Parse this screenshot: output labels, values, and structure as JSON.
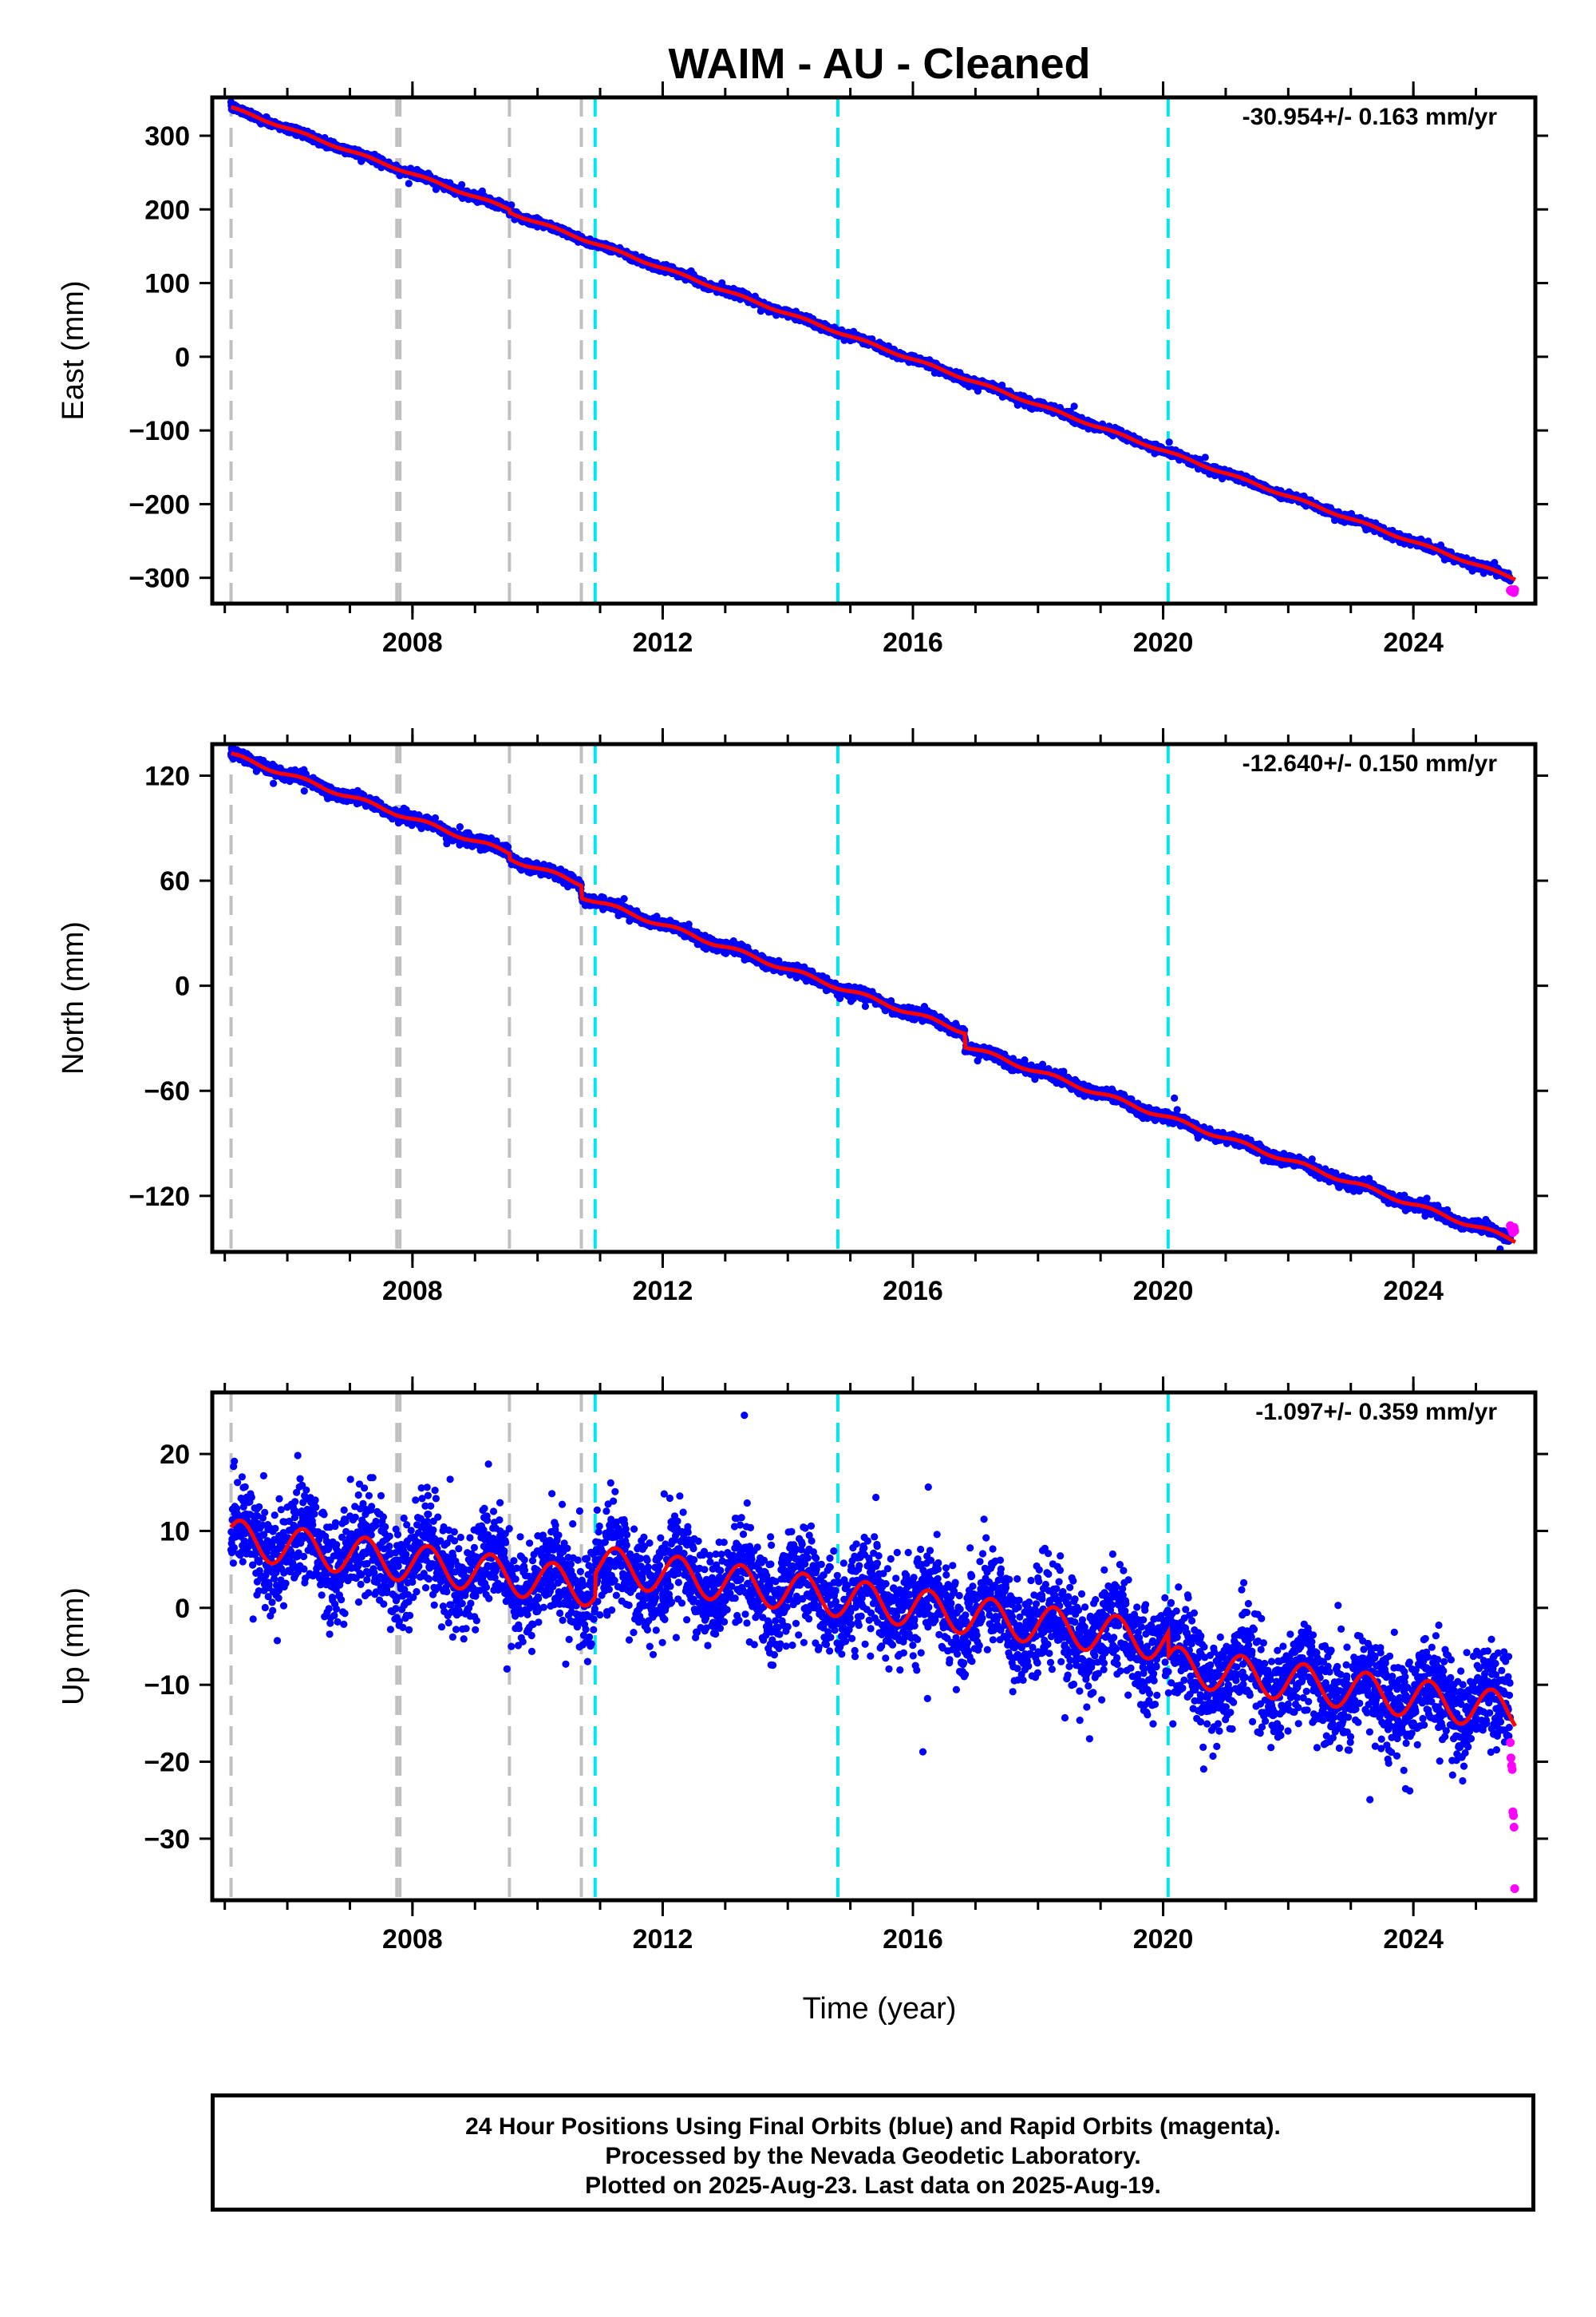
{
  "chart_data": {
    "type": "scatter",
    "title": "WAIM  - AU - Cleaned",
    "xlabel": "Time (year)",
    "xlim": [
      2004.8,
      2025.95
    ],
    "xticks": [
      2008,
      2012,
      2016,
      2020,
      2024
    ],
    "xticks_minor": [
      2005,
      2006,
      2007,
      2008,
      2009,
      2010,
      2011,
      2012,
      2013,
      2014,
      2015,
      2016,
      2017,
      2018,
      2019,
      2020,
      2021,
      2022,
      2023,
      2024,
      2025
    ],
    "start_year": 2005.1,
    "end_year": 2025.63,
    "rapid_start_year": 2025.55,
    "gray_dashed_lines": [
      2005.1,
      2007.75,
      2007.8,
      2009.55,
      2010.7
    ],
    "cyan_dashed_lines": [
      2010.92,
      2014.8,
      2020.08
    ],
    "colors": {
      "final": "#0000ff",
      "rapid": "#ff00ff",
      "model": "#ff0000",
      "gray_line": "#c0c0c0",
      "cyan_line": "#00e5ee"
    },
    "panels": [
      {
        "id": "east",
        "ylabel": "East (mm)",
        "ylim": [
          -335,
          352
        ],
        "yticks": [
          300,
          200,
          100,
          0,
          -100,
          -200,
          -300
        ],
        "rate_text": "-30.954+/- 0.163 mm/yr",
        "start_value": 338,
        "rate_mm_per_yr": -30.954,
        "scatter_sd": 2.5,
        "seasonal_amp": 1.5,
        "offsets": [
          [
            2007.78,
            0
          ],
          [
            2009.55,
            -4
          ],
          [
            2010.7,
            0
          ]
        ],
        "rapid_values": [
          -317,
          -318,
          -316,
          -319,
          -317,
          -318,
          -320,
          -316
        ]
      },
      {
        "id": "north",
        "ylabel": "North (mm)",
        "ylim": [
          -152,
          138
        ],
        "yticks": [
          120,
          60,
          0,
          -60,
          -120
        ],
        "rate_text": "-12.640+/- 0.150 mm/yr",
        "start_value": 132,
        "rate_mm_per_yr": -12.64,
        "scatter_sd": 1.5,
        "seasonal_amp": 1.2,
        "offsets": [
          [
            2009.55,
            -3
          ],
          [
            2010.7,
            -7
          ],
          [
            2016.83,
            -8
          ]
        ],
        "rapid_values": [
          -137,
          -138,
          -139,
          -140,
          -141,
          -139,
          -138,
          -140
        ]
      },
      {
        "id": "up",
        "ylabel": "Up (mm)",
        "ylim": [
          -38,
          28
        ],
        "yticks": [
          20,
          10,
          0,
          -10,
          -20,
          -30
        ],
        "rate_text": "-1.097+/- 0.359 mm/yr",
        "start_value": 9,
        "rate_mm_per_yr": -1.097,
        "scatter_sd": 3.2,
        "seasonal_amp": 2.5,
        "offsets": [
          [
            2010.92,
            3
          ],
          [
            2020.08,
            -3
          ]
        ],
        "rapid_values": [
          -17.5,
          -19.5,
          -20.5,
          -21,
          -26.5,
          -27,
          -28.5,
          -36.5
        ]
      }
    ]
  },
  "footer": {
    "line1": "24 Hour Positions Using Final Orbits (blue) and Rapid Orbits (magenta).",
    "line2": "Processed by the Nevada Geodetic Laboratory.",
    "line3": "Plotted on 2025-Aug-23. Last data on 2025-Aug-19."
  }
}
